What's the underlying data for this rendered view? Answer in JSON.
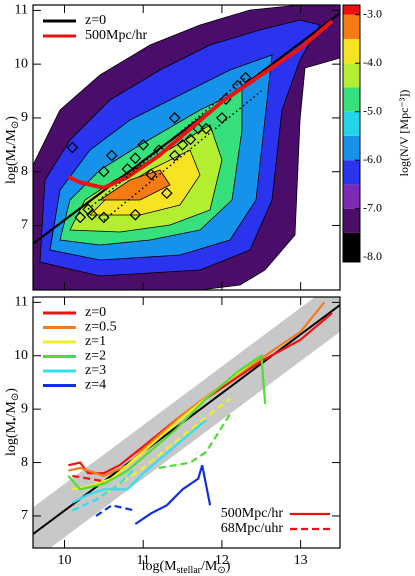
{
  "chart_data": [
    {
      "type": "contour",
      "ylabel": [
        "log(M",
        "•",
        "/M",
        "⊙",
        ")"
      ],
      "xlim": [
        9.6,
        13.5
      ],
      "ylim": [
        5.8,
        11.1
      ],
      "xticks": [
        10,
        11,
        12,
        13
      ],
      "yticks": [
        7,
        8,
        9,
        10,
        11
      ],
      "legend": "upper left",
      "series": [
        {
          "name": "z=0",
          "color": "#000000",
          "linestyle": "solid",
          "x": [
            9.6,
            13.5
          ],
          "y": [
            6.66,
            10.95
          ]
        },
        {
          "name": "500Mpc/hr",
          "color": "#ee1111",
          "linestyle": "solid",
          "x": [
            10.05,
            10.2,
            10.5,
            10.8,
            11.2,
            11.6,
            12.0,
            12.5,
            13.0,
            13.4
          ],
          "y": [
            7.9,
            7.8,
            7.7,
            7.9,
            8.3,
            8.8,
            9.3,
            9.8,
            10.3,
            10.8
          ]
        },
        {
          "color": "#000000",
          "linestyle": "dotted",
          "x": [
            10.3,
            12.3
          ],
          "y": [
            7.3,
            9.75
          ]
        },
        {
          "color": "#000000",
          "linestyle": "dotted",
          "x": [
            10.5,
            12.5
          ],
          "y": [
            7.1,
            9.5
          ]
        }
      ],
      "points": {
        "color": "#000000",
        "x": [
          10.1,
          10.2,
          10.3,
          10.35,
          10.5,
          10.5,
          10.6,
          10.8,
          10.9,
          10.9,
          11.0,
          11.1,
          11.2,
          11.3,
          11.4,
          11.4,
          11.5,
          11.6,
          11.7,
          11.8,
          12.0,
          12.05,
          12.2,
          12.3
        ],
        "y": [
          8.45,
          7.15,
          7.3,
          7.2,
          7.15,
          8.0,
          8.3,
          8.05,
          8.25,
          7.2,
          8.5,
          7.95,
          8.4,
          7.6,
          8.3,
          9.0,
          8.5,
          8.6,
          8.8,
          8.8,
          9.0,
          9.35,
          9.6,
          9.75
        ]
      },
      "colorbar": {
        "label": "log(N/V [Mpc⁻³])",
        "lim": [
          -8.1,
          -2.8
        ],
        "levels": [
          -8,
          -7.5,
          -7,
          -6.5,
          -6,
          -5.5,
          -5,
          -4.5,
          -4,
          -3.5,
          -3
        ],
        "colors": [
          "#000000",
          "#4a0d6a",
          "#7a2bb8",
          "#2a34ee",
          "#1592ea",
          "#22d6e6",
          "#36e07a",
          "#b4ee30",
          "#f6e422",
          "#f47a14",
          "#ee1010"
        ],
        "ticks": [
          {
            "value": -3,
            "label": "-3.0"
          },
          {
            "value": -4,
            "label": "-4.0"
          },
          {
            "value": -5,
            "label": "-5.0"
          },
          {
            "value": -6,
            "label": "-6.0"
          },
          {
            "value": -7,
            "label": "-7.0"
          },
          {
            "value": -8,
            "label": "-8.0"
          }
        ]
      }
    },
    {
      "type": "line",
      "ylabel": [
        "log(M",
        "•",
        "/M",
        "⊙",
        ")"
      ],
      "xlabel": [
        "log(M",
        "stellar",
        "/M",
        "⊙",
        ")"
      ],
      "xlim": [
        9.6,
        13.5
      ],
      "ylim": [
        6.4,
        11.1
      ],
      "xticks": [
        10,
        11,
        12,
        13
      ],
      "yticks": [
        7,
        8,
        9,
        10,
        11
      ],
      "legend": "upper left",
      "band": {
        "color": "#c8c8c8",
        "x": [
          9.6,
          13.5
        ],
        "lower": [
          6.16,
          10.45
        ],
        "upper": [
          7.16,
          11.45
        ]
      },
      "relation": {
        "color": "#000000",
        "x": [
          9.6,
          13.5
        ],
        "y": [
          6.66,
          10.95
        ]
      },
      "series": [
        {
          "name": "z=0",
          "color": "#ee1111",
          "linestyle": "solid",
          "x": [
            10.05,
            10.2,
            10.3,
            10.5,
            10.7,
            11.0,
            11.5,
            12.0,
            12.5,
            13.0,
            13.4
          ],
          "y": [
            7.95,
            8.0,
            7.8,
            7.8,
            7.95,
            8.3,
            8.9,
            9.4,
            9.9,
            10.3,
            10.8
          ]
        },
        {
          "name": "z=0.5",
          "color": "#f47a20",
          "linestyle": "solid",
          "x": [
            10.05,
            10.2,
            10.5,
            10.8,
            11.0,
            11.5,
            12.0,
            12.5,
            13.0,
            13.3
          ],
          "y": [
            7.85,
            7.9,
            7.75,
            7.95,
            8.25,
            8.9,
            9.45,
            9.95,
            10.45,
            11.0
          ]
        },
        {
          "name": "z=1",
          "color": "#f0f020",
          "linestyle": "solid",
          "x": [
            10.1,
            10.3,
            10.6,
            11.0,
            11.5,
            12.0,
            12.5
          ],
          "y": [
            7.5,
            7.55,
            7.7,
            8.2,
            8.85,
            9.45,
            10.0
          ]
        },
        {
          "name": "z=2",
          "color": "#50dd30",
          "linestyle": "solid",
          "x": [
            10.05,
            10.2,
            10.5,
            10.8,
            11.0,
            11.4,
            11.8,
            12.2,
            12.5,
            12.55
          ],
          "y": [
            7.75,
            7.5,
            7.6,
            7.85,
            8.1,
            8.6,
            9.2,
            9.7,
            10.0,
            9.1
          ]
        },
        {
          "name": "z=3",
          "color": "#30e0f0",
          "linestyle": "solid",
          "x": [
            10.1,
            10.3,
            10.5,
            10.8,
            11.0,
            11.4,
            11.8
          ],
          "y": [
            7.25,
            7.4,
            7.5,
            7.5,
            7.8,
            8.3,
            8.8
          ]
        },
        {
          "name": "z=4",
          "color": "#1030e0",
          "linestyle": "solid",
          "x": [
            10.9,
            11.1,
            11.3,
            11.5,
            11.7,
            11.75,
            11.85
          ],
          "y": [
            6.85,
            7.05,
            7.2,
            7.5,
            7.7,
            7.95,
            7.2
          ]
        },
        {
          "color": "#ee1111",
          "linestyle": "dashed",
          "x": [
            10.1,
            10.3,
            10.5
          ],
          "y": [
            7.75,
            7.7,
            7.65
          ]
        },
        {
          "color": "#f0f020",
          "linestyle": "dashed",
          "x": [
            10.5,
            11.0,
            11.5,
            12.1
          ],
          "y": [
            7.4,
            7.9,
            8.5,
            9.2
          ]
        },
        {
          "color": "#50dd30",
          "linestyle": "dashed",
          "x": [
            11.2,
            11.6,
            11.8,
            12.1
          ],
          "y": [
            7.9,
            8.0,
            8.2,
            8.9
          ]
        },
        {
          "color": "#30e0f0",
          "linestyle": "dashed",
          "x": [
            10.1,
            10.4,
            10.7,
            10.9
          ],
          "y": [
            7.1,
            7.3,
            7.6,
            7.9
          ]
        },
        {
          "color": "#1030e0",
          "linestyle": "dashed",
          "x": [
            10.4,
            10.6,
            10.9
          ],
          "y": [
            7.0,
            7.2,
            7.1
          ]
        }
      ],
      "style_legend": {
        "color": "#ee1111",
        "entries": [
          {
            "label": "500Mpc/hr",
            "linestyle": "solid"
          },
          {
            "label": "68Mpc/uhr",
            "linestyle": "dashed"
          }
        ]
      }
    }
  ]
}
